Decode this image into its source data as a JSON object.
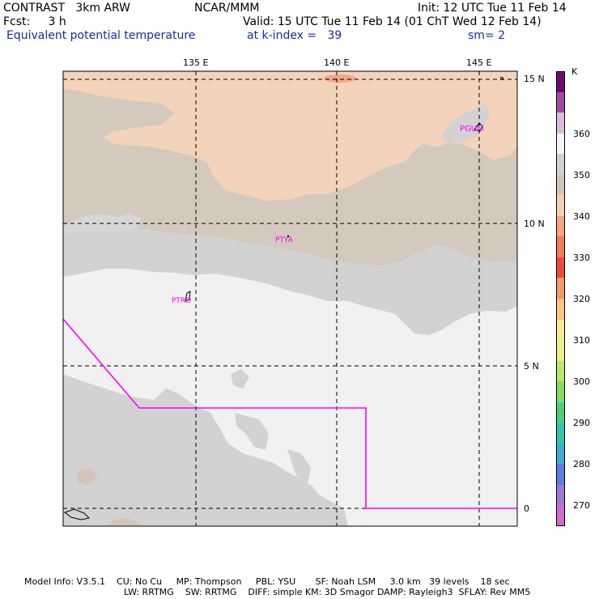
{
  "header": {
    "model": "CONTRAST   3km ARW",
    "org": "NCAR/MMM",
    "init": "Init: 12 UTC Tue 11 Feb 14",
    "fcst": "Fcst:     3 h",
    "valid": "Valid: 15 UTC Tue 11 Feb 14 (01 ChT Wed 12 Feb 14)",
    "field": "Equivalent potential temperature",
    "kindex": "at k-index =   39",
    "sm": "sm= 2"
  },
  "map": {
    "lon_labels": [
      "135 E",
      "140 E",
      "145 E"
    ],
    "lat_labels": [
      "15 N",
      "10 N",
      "5 N",
      "0"
    ],
    "stations": [
      "PGUM",
      "PTYA",
      "PTRO"
    ]
  },
  "colorbar": {
    "unit": "K",
    "labels": [
      "360",
      "350",
      "340",
      "330",
      "320",
      "310",
      "300",
      "290",
      "280",
      "270"
    ],
    "colors": [
      "#6e0a6e",
      "#a24aa0",
      "#dcbcdc",
      "#f4f4f4",
      "#d2d2d2",
      "#d3c6b8",
      "#f3d1b7",
      "#f5a582",
      "#f27c5c",
      "#ee4a3c",
      "#f09a6a",
      "#f8c882",
      "#fae890",
      "#e8f08a",
      "#bce86a",
      "#86dc64",
      "#4cd07a",
      "#30c8a4",
      "#3eaed2",
      "#5c7ee0",
      "#9c7cd0",
      "#d26ad2"
    ]
  },
  "footer": {
    "line1": "Model Info: V3.5.1    CU: No Cu     MP: Thompson     PBL: YSU       SF: Noah LSM     3.0 km   39 levels    18 sec",
    "line2": "LW: RRTMG    SW: RRTMG    DIFF: simple KM: 3D Smagor DAMP: Rayleigh3  SFLAY: Rev MM5"
  }
}
